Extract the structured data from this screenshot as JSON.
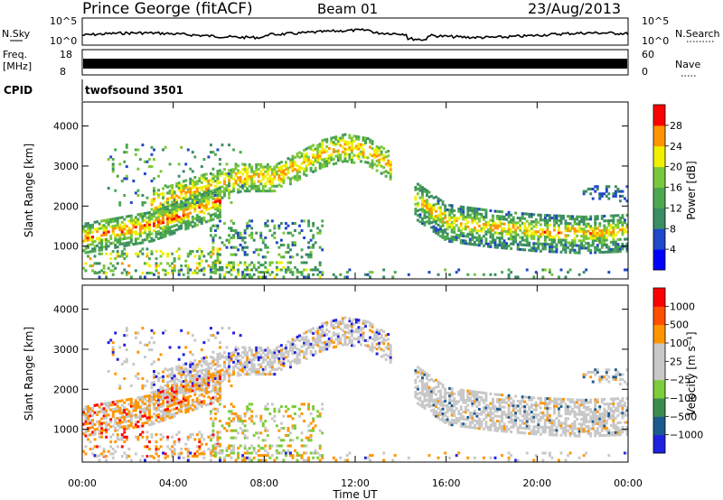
{
  "header": {
    "station": "Prince George (fitACF)",
    "beam": "Beam 01",
    "date": "23/Aug/2013"
  },
  "noise_panel": {
    "left_label": "N.Sky",
    "left_ticks": [
      "10^5",
      "10^0"
    ],
    "right_label": "N.Search",
    "right_ticks": [
      "10^5",
      "10^0"
    ]
  },
  "freq_panel": {
    "left_label_1": "Freq.",
    "left_label_2": "[MHz]",
    "left_ticks": [
      "18",
      "8"
    ],
    "right_label": "Nave",
    "right_ticks": [
      "60",
      "0"
    ]
  },
  "cpid": {
    "label": "CPID",
    "program": "twofsound 3501"
  },
  "chart_data": [
    {
      "type": "heatmap",
      "parameter": "Power",
      "ylabel": "Slant Range [km]",
      "ylim": [
        180,
        4600
      ],
      "yticks": [
        "1000",
        "2000",
        "3000",
        "4000"
      ],
      "xlabel": "Time UT",
      "xlim": [
        "00:00",
        "24:00"
      ],
      "xticks": [
        "00:00",
        "04:00",
        "08:00",
        "12:00",
        "16:00",
        "20:00",
        "00:00"
      ],
      "colorbar": {
        "label": "Power [dB]",
        "ticks": [
          "4",
          "8",
          "12",
          "16",
          "20",
          "24",
          "28"
        ],
        "colors": [
          "#0000ff",
          "#2048c8",
          "#3c8c64",
          "#4ca850",
          "#7cc83c",
          "#f0f000",
          "#ff9600",
          "#ff0000"
        ]
      },
      "echo_regions": [
        {
          "name": "upper-arc",
          "t": [
            3.0,
            5.0,
            7.0,
            8.5,
            9.5,
            10.5,
            11.5,
            12.5,
            13.5
          ],
          "range_km": [
            2000,
            2400,
            2700,
            2700,
            3000,
            3300,
            3450,
            3350,
            3000
          ]
        },
        {
          "name": "lower-band-morning",
          "t": [
            0.0,
            1.0,
            2.0,
            3.0,
            4.0,
            5.0,
            6.0
          ],
          "range_km": [
            1200,
            1300,
            1400,
            1500,
            1700,
            1900,
            2100
          ]
        },
        {
          "name": "lower-band-evening",
          "t": [
            14.5,
            16.0,
            18.0,
            20.0,
            22.0,
            24.0
          ],
          "range_km": [
            2200,
            1600,
            1450,
            1350,
            1300,
            1350
          ]
        }
      ]
    },
    {
      "type": "heatmap",
      "parameter": "Velocity",
      "ylabel": "Slant Range [km]",
      "ylim": [
        180,
        4600
      ],
      "yticks": [
        "1000",
        "2000",
        "3000",
        "4000"
      ],
      "xlabel": "Time UT",
      "xticks": [
        "00:00",
        "04:00",
        "08:00",
        "12:00",
        "16:00",
        "20:00",
        "00:00"
      ],
      "colorbar": {
        "label": "Velocity [m s⁻¹]",
        "ticks": [
          "1000",
          "500",
          "100",
          "25",
          "−25",
          "−100",
          "−500",
          "−1000"
        ],
        "colors": [
          "#2020e0",
          "#1c5a8c",
          "#3c8c50",
          "#7ccc3c",
          "#c8c8c8",
          "#c8c8c8",
          "#ff9600",
          "#ff5000",
          "#ff0000"
        ]
      }
    }
  ],
  "xaxis": {
    "label": "Time UT",
    "ticks": [
      "00:00",
      "04:00",
      "08:00",
      "12:00",
      "16:00",
      "20:00",
      "00:00"
    ]
  }
}
